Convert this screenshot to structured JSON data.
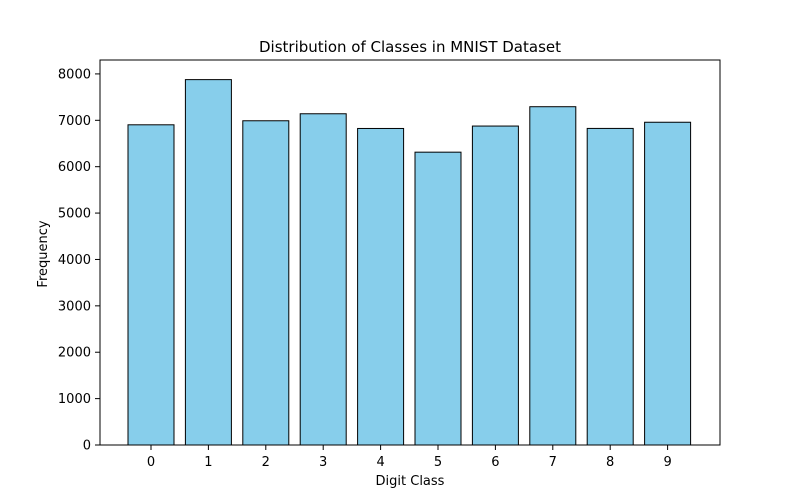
{
  "chart_data": {
    "type": "bar",
    "title": "Distribution of Classes in MNIST Dataset",
    "xlabel": "Digit Class",
    "ylabel": "Frequency",
    "categories": [
      "0",
      "1",
      "2",
      "3",
      "4",
      "5",
      "6",
      "7",
      "8",
      "9"
    ],
    "values": [
      6903,
      7877,
      6990,
      7141,
      6824,
      6313,
      6876,
      7293,
      6825,
      6958
    ],
    "ylim": [
      0,
      8300
    ],
    "yticks": [
      0,
      1000,
      2000,
      3000,
      4000,
      5000,
      6000,
      7000,
      8000
    ],
    "bar_color": "#87ceeb",
    "edge_color": "#000000",
    "grid": false,
    "legend": "none"
  }
}
